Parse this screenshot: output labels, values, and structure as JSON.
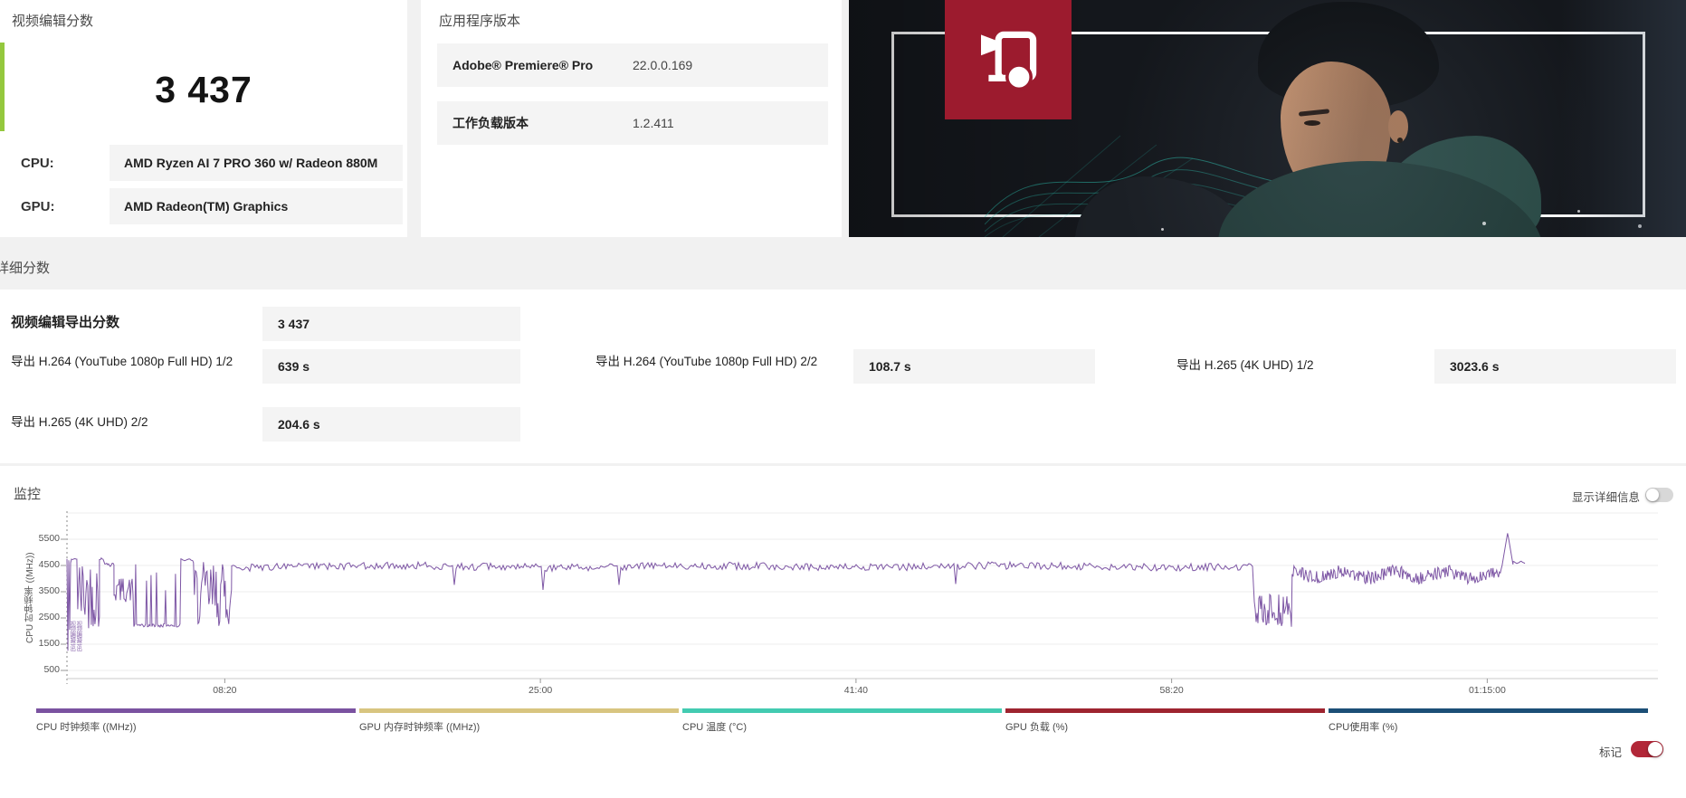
{
  "score_card": {
    "title": "视频编辑分数",
    "score": "3 437",
    "accent_color": "#94c83d",
    "cpu_label": "CPU:",
    "cpu_value": "AMD Ryzen AI 7 PRO 360 w/ Radeon 880M",
    "gpu_label": "GPU:",
    "gpu_value": "AMD Radeon(TM) Graphics"
  },
  "version_card": {
    "title": "应用程序版本",
    "rows": [
      {
        "name": "Adobe® Premiere® Pro",
        "value": "22.0.0.169"
      },
      {
        "name": "工作负载版本",
        "value": "1.2.411"
      }
    ]
  },
  "hero": {
    "badge_color": "#9c1b2e",
    "badge_icon": "video-camera-icon"
  },
  "detail_section": {
    "title": "详细分数",
    "score_row": {
      "label": "视频编辑导出分数",
      "value": "3 437"
    },
    "cells": [
      {
        "label": "导出 H.264 (YouTube 1080p Full HD) 1/2",
        "value": "639 s"
      },
      {
        "label": "导出 H.264 (YouTube 1080p Full HD) 2/2",
        "value": "108.7 s"
      },
      {
        "label": "导出 H.265 (4K UHD) 1/2",
        "value": "3023.6 s"
      },
      {
        "label": "导出 H.265 (4K UHD) 2/2",
        "value": "204.6 s"
      }
    ]
  },
  "monitor": {
    "title": "监控",
    "detail_toggle_label": "显示详细信息",
    "detail_toggle_on": false,
    "marker_toggle_label": "标记",
    "marker_toggle_on": true,
    "marker_toggle_color": "#b22738"
  },
  "chart_data": {
    "type": "line",
    "title": "监控",
    "ylabel": "CPU 时钟频率 ((MHz))",
    "yticks": [
      500,
      1500,
      2500,
      3500,
      4500,
      5500
    ],
    "ylim": [
      0,
      6500
    ],
    "xtick_labels": [
      "08:20",
      "25:00",
      "41:40",
      "58:20",
      "01:15:00"
    ],
    "xtick_seconds": [
      500,
      1500,
      2500,
      3500,
      4500
    ],
    "xlim_seconds": [
      0,
      5040
    ],
    "grid": true,
    "legend_position": "bottom",
    "series": [
      {
        "name": "CPU 时钟频率 ((MHz))",
        "color": "#7e57a5",
        "unit": "MHz",
        "segments": [
          [
            0,
            17,
            1250,
            4800,
            "transient"
          ],
          [
            17,
            34,
            4700,
            4770,
            "flat"
          ],
          [
            34,
            103,
            2100,
            4780,
            "dense"
          ],
          [
            103,
            149,
            4450,
            4860,
            "wiggle"
          ],
          [
            149,
            212,
            3100,
            4050,
            "dense"
          ],
          [
            212,
            361,
            2150,
            4550,
            "spikes-up"
          ],
          [
            361,
            401,
            4660,
            4770,
            "flat"
          ],
          [
            401,
            522,
            2150,
            4650,
            "dense"
          ],
          [
            522,
            3762,
            4300,
            4620,
            "steady"
          ],
          [
            3762,
            3882,
            2100,
            3400,
            "dense"
          ],
          [
            3882,
            4547,
            3750,
            4550,
            "wiggle-noise"
          ],
          [
            4547,
            4582,
            4500,
            5750,
            "spike"
          ],
          [
            4582,
            4622,
            4550,
            4680,
            "flat"
          ]
        ]
      }
    ],
    "legend": [
      {
        "label": "CPU 时钟频率 ((MHz))",
        "color": "#7a52a0"
      },
      {
        "label": "GPU 内存时钟频率 ((MHz))",
        "color": "#d8c580"
      },
      {
        "label": "CPU 温度 (°C)",
        "color": "#43cbb1"
      },
      {
        "label": "GPU 负载 (%)",
        "color": "#9e2430"
      },
      {
        "label": "CPU使用率 (%)",
        "color": "#1c4f77"
      }
    ],
    "markers": [
      {
        "label": "视频编辑导出",
        "t": 8
      },
      {
        "label": "视频编辑导出",
        "t": 28
      }
    ]
  }
}
